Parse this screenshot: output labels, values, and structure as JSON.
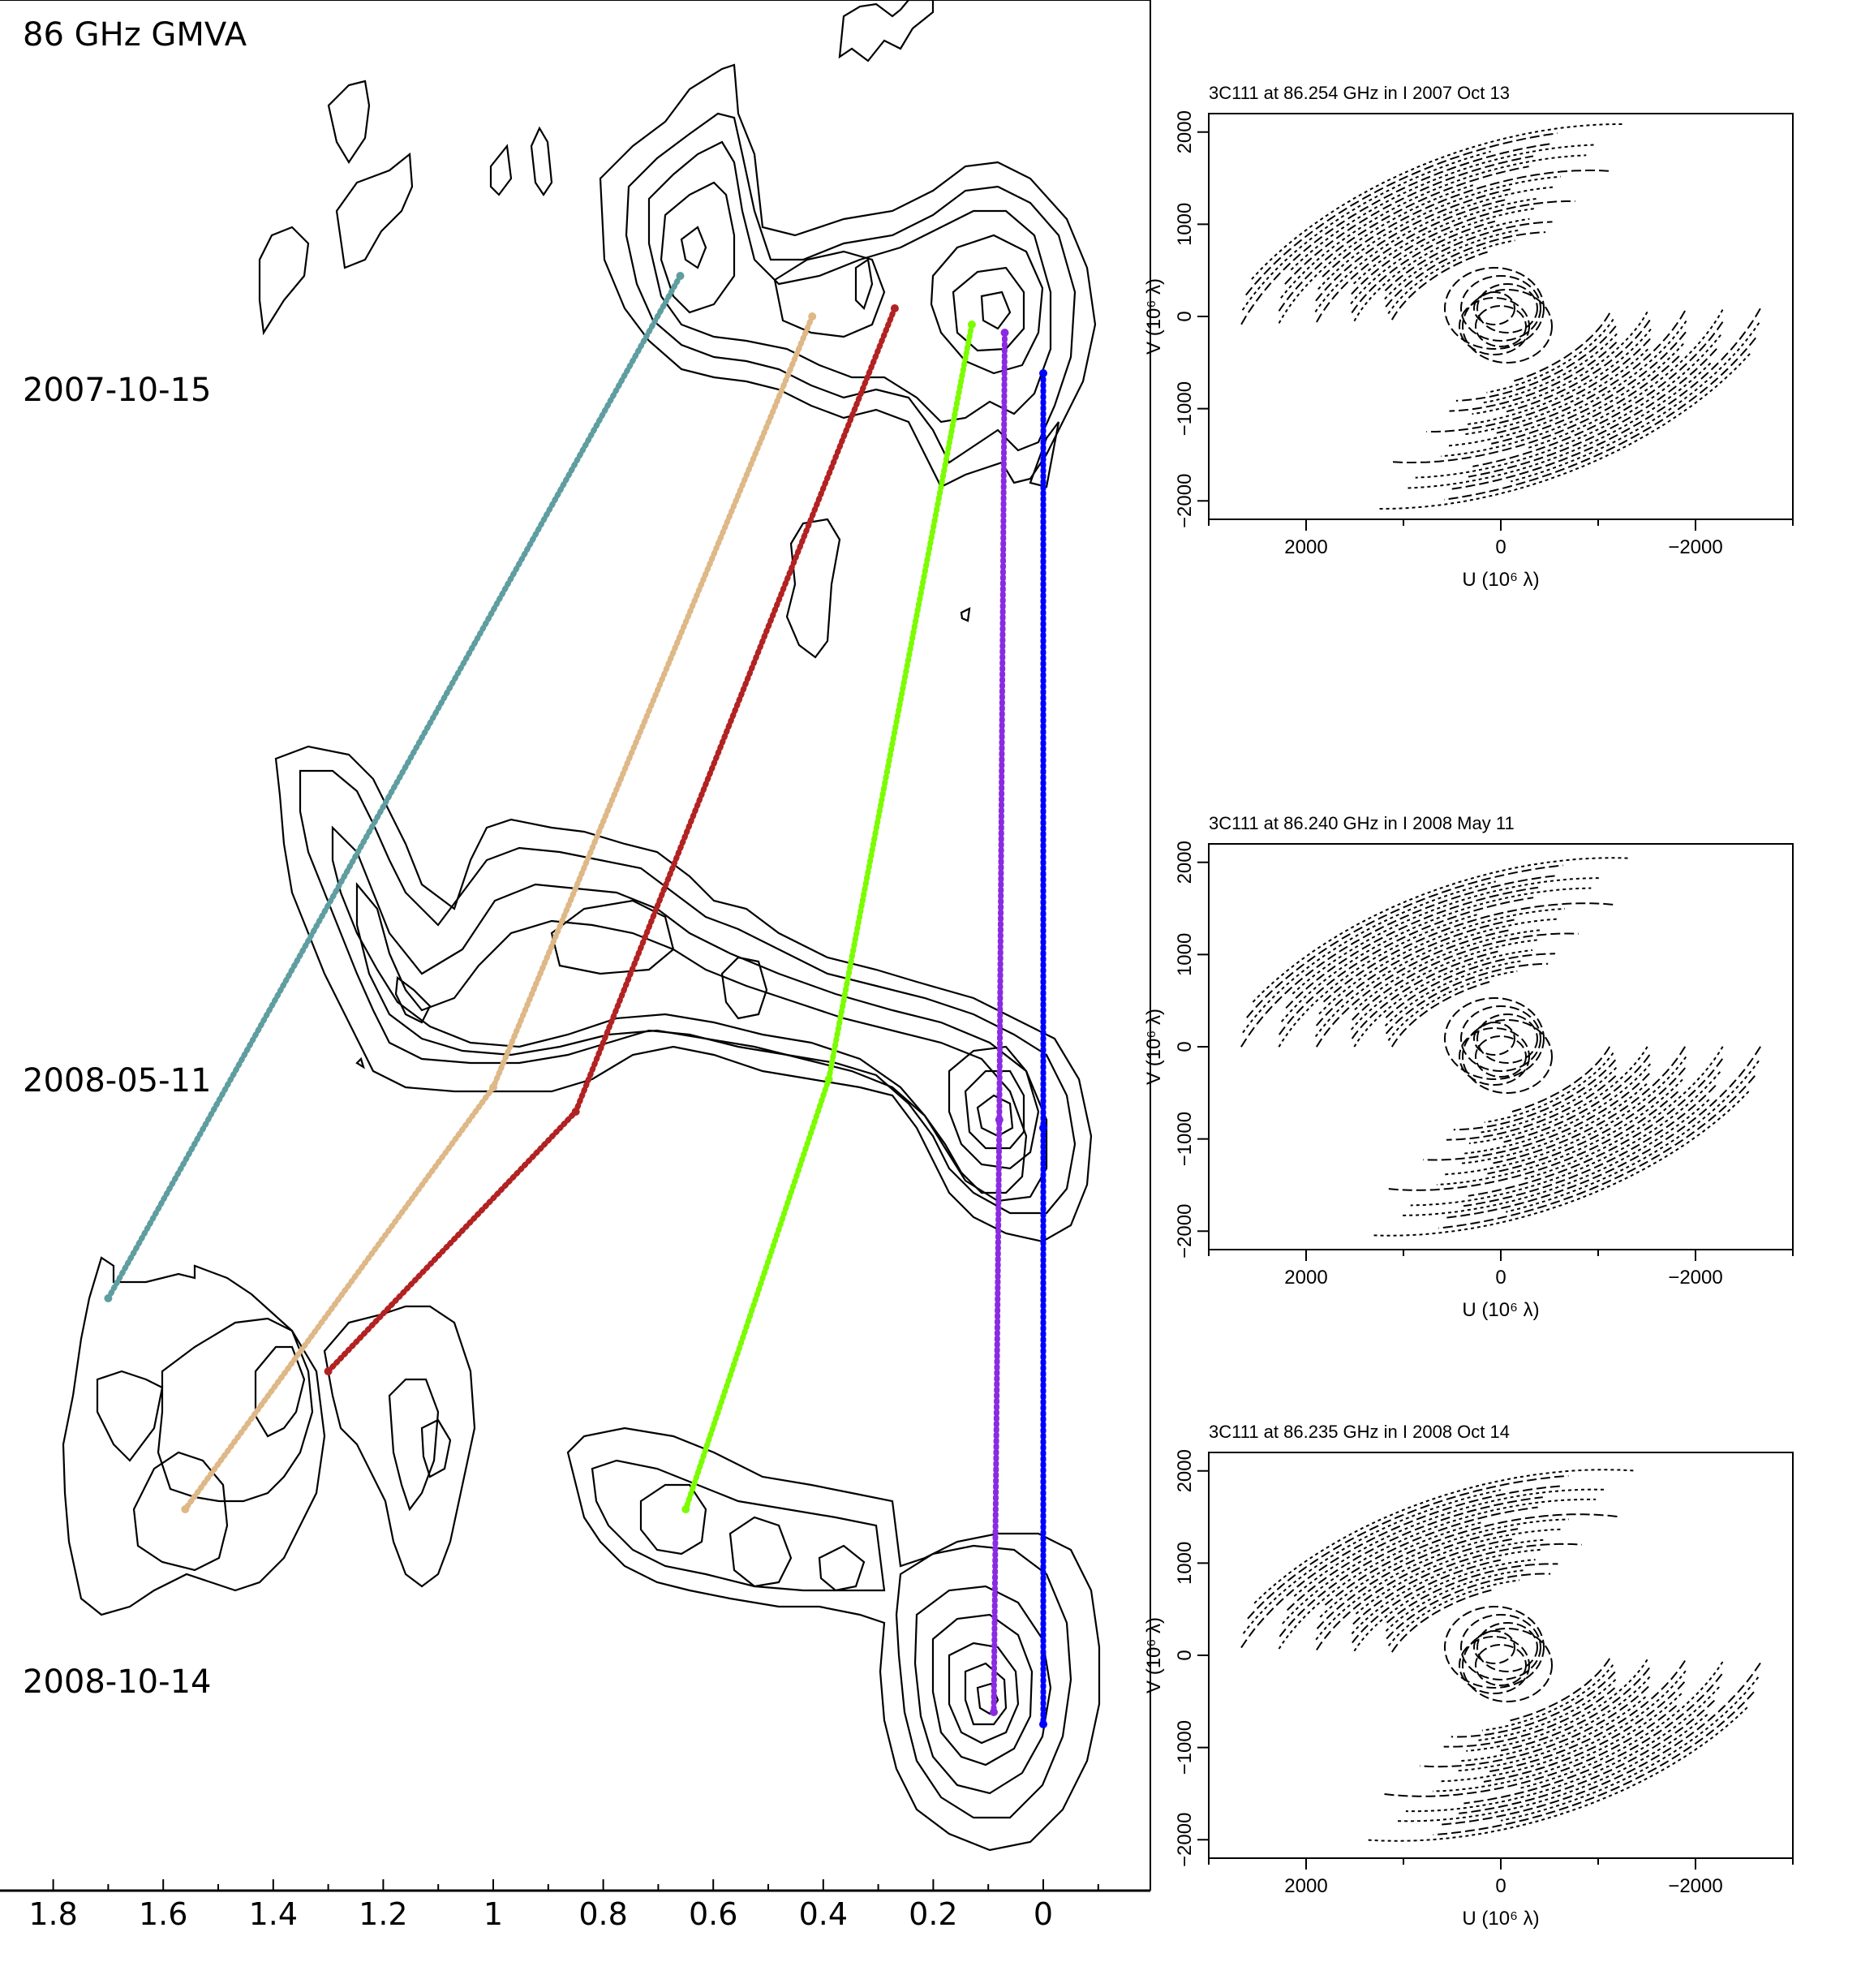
{
  "header": {
    "title": "86 GHz   GMVA"
  },
  "chart_data": [
    {
      "type": "scatter",
      "title": "86 GHz   GMVA",
      "xlabel": "",
      "ylabel": "",
      "xlim": [
        1.9,
        -0.2
      ],
      "x_ticks": [
        "1.8",
        "1.6",
        "1.4",
        "1.2",
        "1",
        "0.8",
        "0.6",
        "0.4",
        "0.2",
        "0"
      ],
      "epochs": [
        "2007-10-15",
        "2008-05-11",
        "2008-10-14"
      ],
      "series": [
        {
          "color": "#5f9ea0",
          "points": [
            {
              "epoch": "2007-10-15",
              "x": 0.66
            },
            {
              "epoch": "2008-05-11",
              "x": 1.7
            }
          ]
        },
        {
          "color": "#deb887",
          "points": [
            {
              "epoch": "2007-10-15",
              "x": 0.42
            },
            {
              "epoch": "2008-05-11",
              "x": 1.0
            },
            {
              "epoch": "2008-10-14",
              "x": 1.56
            }
          ]
        },
        {
          "color": "#b22222",
          "points": [
            {
              "epoch": "2007-10-15",
              "x": 0.27
            },
            {
              "epoch": "2008-05-11",
              "x": 0.85
            },
            {
              "epoch": "2008-10-14",
              "x": 1.3
            }
          ]
        },
        {
          "color": "#7cfc00",
          "points": [
            {
              "epoch": "2007-10-15",
              "x": 0.13
            },
            {
              "epoch": "2008-05-11",
              "x": 0.39
            },
            {
              "epoch": "2008-10-14",
              "x": 0.65
            }
          ]
        },
        {
          "color": "#8a2be2",
          "points": [
            {
              "epoch": "2007-10-15",
              "x": 0.07
            },
            {
              "epoch": "2008-05-11",
              "x": 0.08
            },
            {
              "epoch": "2008-10-14",
              "x": 0.09
            }
          ]
        },
        {
          "color": "#0000ff",
          "points": [
            {
              "epoch": "2007-10-15",
              "x": 0.0
            },
            {
              "epoch": "2008-05-11",
              "x": 0.0
            },
            {
              "epoch": "2008-10-14",
              "x": 0.0
            }
          ]
        }
      ]
    },
    {
      "type": "scatter",
      "title": "3C111 at 86.254 GHz in I  2007 Oct 13",
      "xlabel": "U (10⁶ λ)",
      "ylabel": "V (10⁶ λ)",
      "xlim": [
        3000,
        -3000
      ],
      "ylim": [
        -2200,
        2200
      ],
      "x_ticks": [
        "2000",
        "0",
        "−2000"
      ],
      "y_ticks": [
        "2000",
        "1000",
        "0",
        "−1000",
        "−2000"
      ]
    },
    {
      "type": "scatter",
      "title": "3C111 at 86.240 GHz in I  2008 May 11",
      "xlabel": "U (10⁶ λ)",
      "ylabel": "V (10⁶ λ)",
      "xlim": [
        3000,
        -3000
      ],
      "ylim": [
        -2200,
        2200
      ],
      "x_ticks": [
        "2000",
        "0",
        "−2000"
      ],
      "y_ticks": [
        "2000",
        "1000",
        "0",
        "−1000",
        "−2000"
      ]
    },
    {
      "type": "scatter",
      "title": "3C111 at 86.235 GHz in I  2008 Oct 14",
      "xlabel": "U (10⁶ λ)",
      "ylabel": "V (10⁶ λ)",
      "xlim": [
        3000,
        -3000
      ],
      "ylim": [
        -2200,
        2200
      ],
      "x_ticks": [
        "2000",
        "0",
        "−2000"
      ],
      "y_ticks": [
        "2000",
        "1000",
        "0",
        "−1000",
        "−2000"
      ]
    }
  ]
}
